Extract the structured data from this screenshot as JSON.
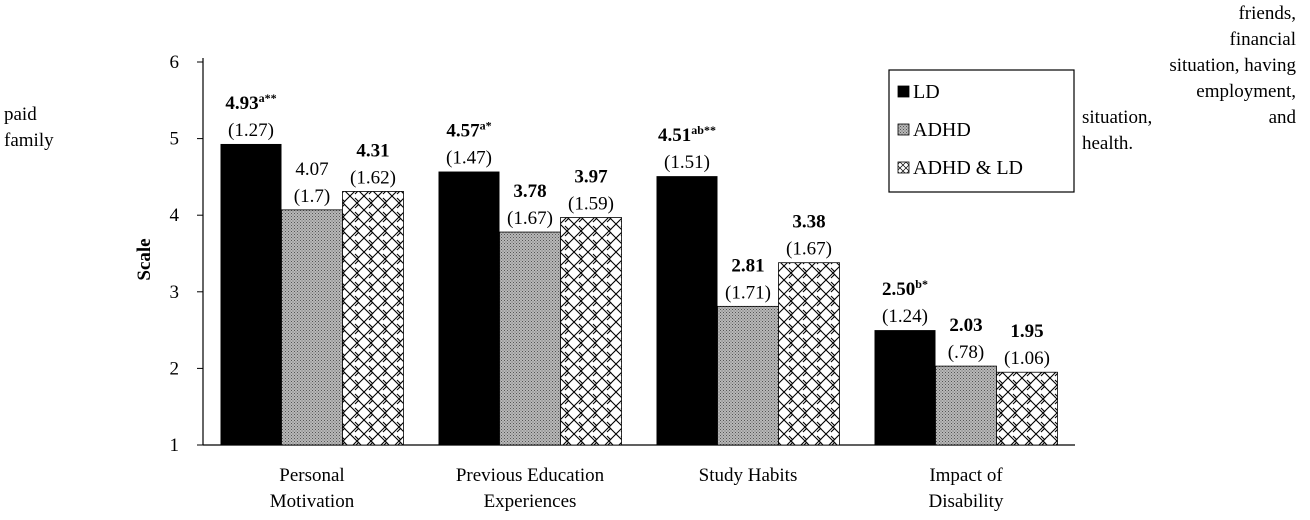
{
  "left_text": [
    "paid",
    "family"
  ],
  "right_text": [
    "friends,",
    "financial",
    "situation, having",
    "employment,",
    "situation,",
    "and",
    "health."
  ],
  "colors": {
    "LD": "#000000",
    "ADHD": "#9a9a9a",
    "ADHD & LD": "#ffffff"
  },
  "chart_data": {
    "type": "bar",
    "title": "",
    "xlabel": "",
    "ylabel": "Scale",
    "ylim": [
      1,
      6
    ],
    "yticks": [
      "1",
      "2",
      "3",
      "4",
      "5",
      "6"
    ],
    "grid": false,
    "legend_position": "top-right",
    "categories": [
      [
        "Personal",
        "Motivation"
      ],
      [
        "Previous Education",
        "Experiences"
      ],
      [
        "Study Habits"
      ],
      [
        "Impact of",
        "Disability"
      ]
    ],
    "series": [
      {
        "name": "LD",
        "pattern": "solid-black",
        "values": [
          4.93,
          4.57,
          4.51,
          2.5
        ],
        "labels": [
          {
            "value": "4.93",
            "sup": "a**",
            "sd": "(1.27)",
            "bold": true
          },
          {
            "value": "4.57",
            "sup": "a*",
            "sd": "(1.47)",
            "bold": true
          },
          {
            "value": "4.51",
            "sup": "ab**",
            "sd": "(1.51)",
            "bold": true
          },
          {
            "value": "2.50",
            "sup": "b*",
            "sd": "(1.24)",
            "bold": true
          }
        ]
      },
      {
        "name": "ADHD",
        "pattern": "gray-dots",
        "values": [
          4.07,
          3.78,
          2.81,
          2.03
        ],
        "labels": [
          {
            "value": "4.07",
            "sup": "",
            "sd": "(1.7)",
            "bold": false
          },
          {
            "value": "3.78",
            "sup": "",
            "sd": "(1.67)",
            "bold": true
          },
          {
            "value": "2.81",
            "sup": "",
            "sd": "(1.71)",
            "bold": true
          },
          {
            "value": "2.03",
            "sup": "",
            "sd": "(.78)",
            "bold": true
          }
        ]
      },
      {
        "name": "ADHD & LD",
        "pattern": "diagonal-weave",
        "values": [
          4.31,
          3.97,
          3.38,
          1.95
        ],
        "labels": [
          {
            "value": "4.31",
            "sup": "",
            "sd": "(1.62)",
            "bold": true
          },
          {
            "value": "3.97",
            "sup": "",
            "sd": "(1.59)",
            "bold": true
          },
          {
            "value": "3.38",
            "sup": "",
            "sd": "(1.67)",
            "bold": true
          },
          {
            "value": "1.95",
            "sup": "",
            "sd": "(1.06)",
            "bold": true
          }
        ]
      }
    ]
  }
}
